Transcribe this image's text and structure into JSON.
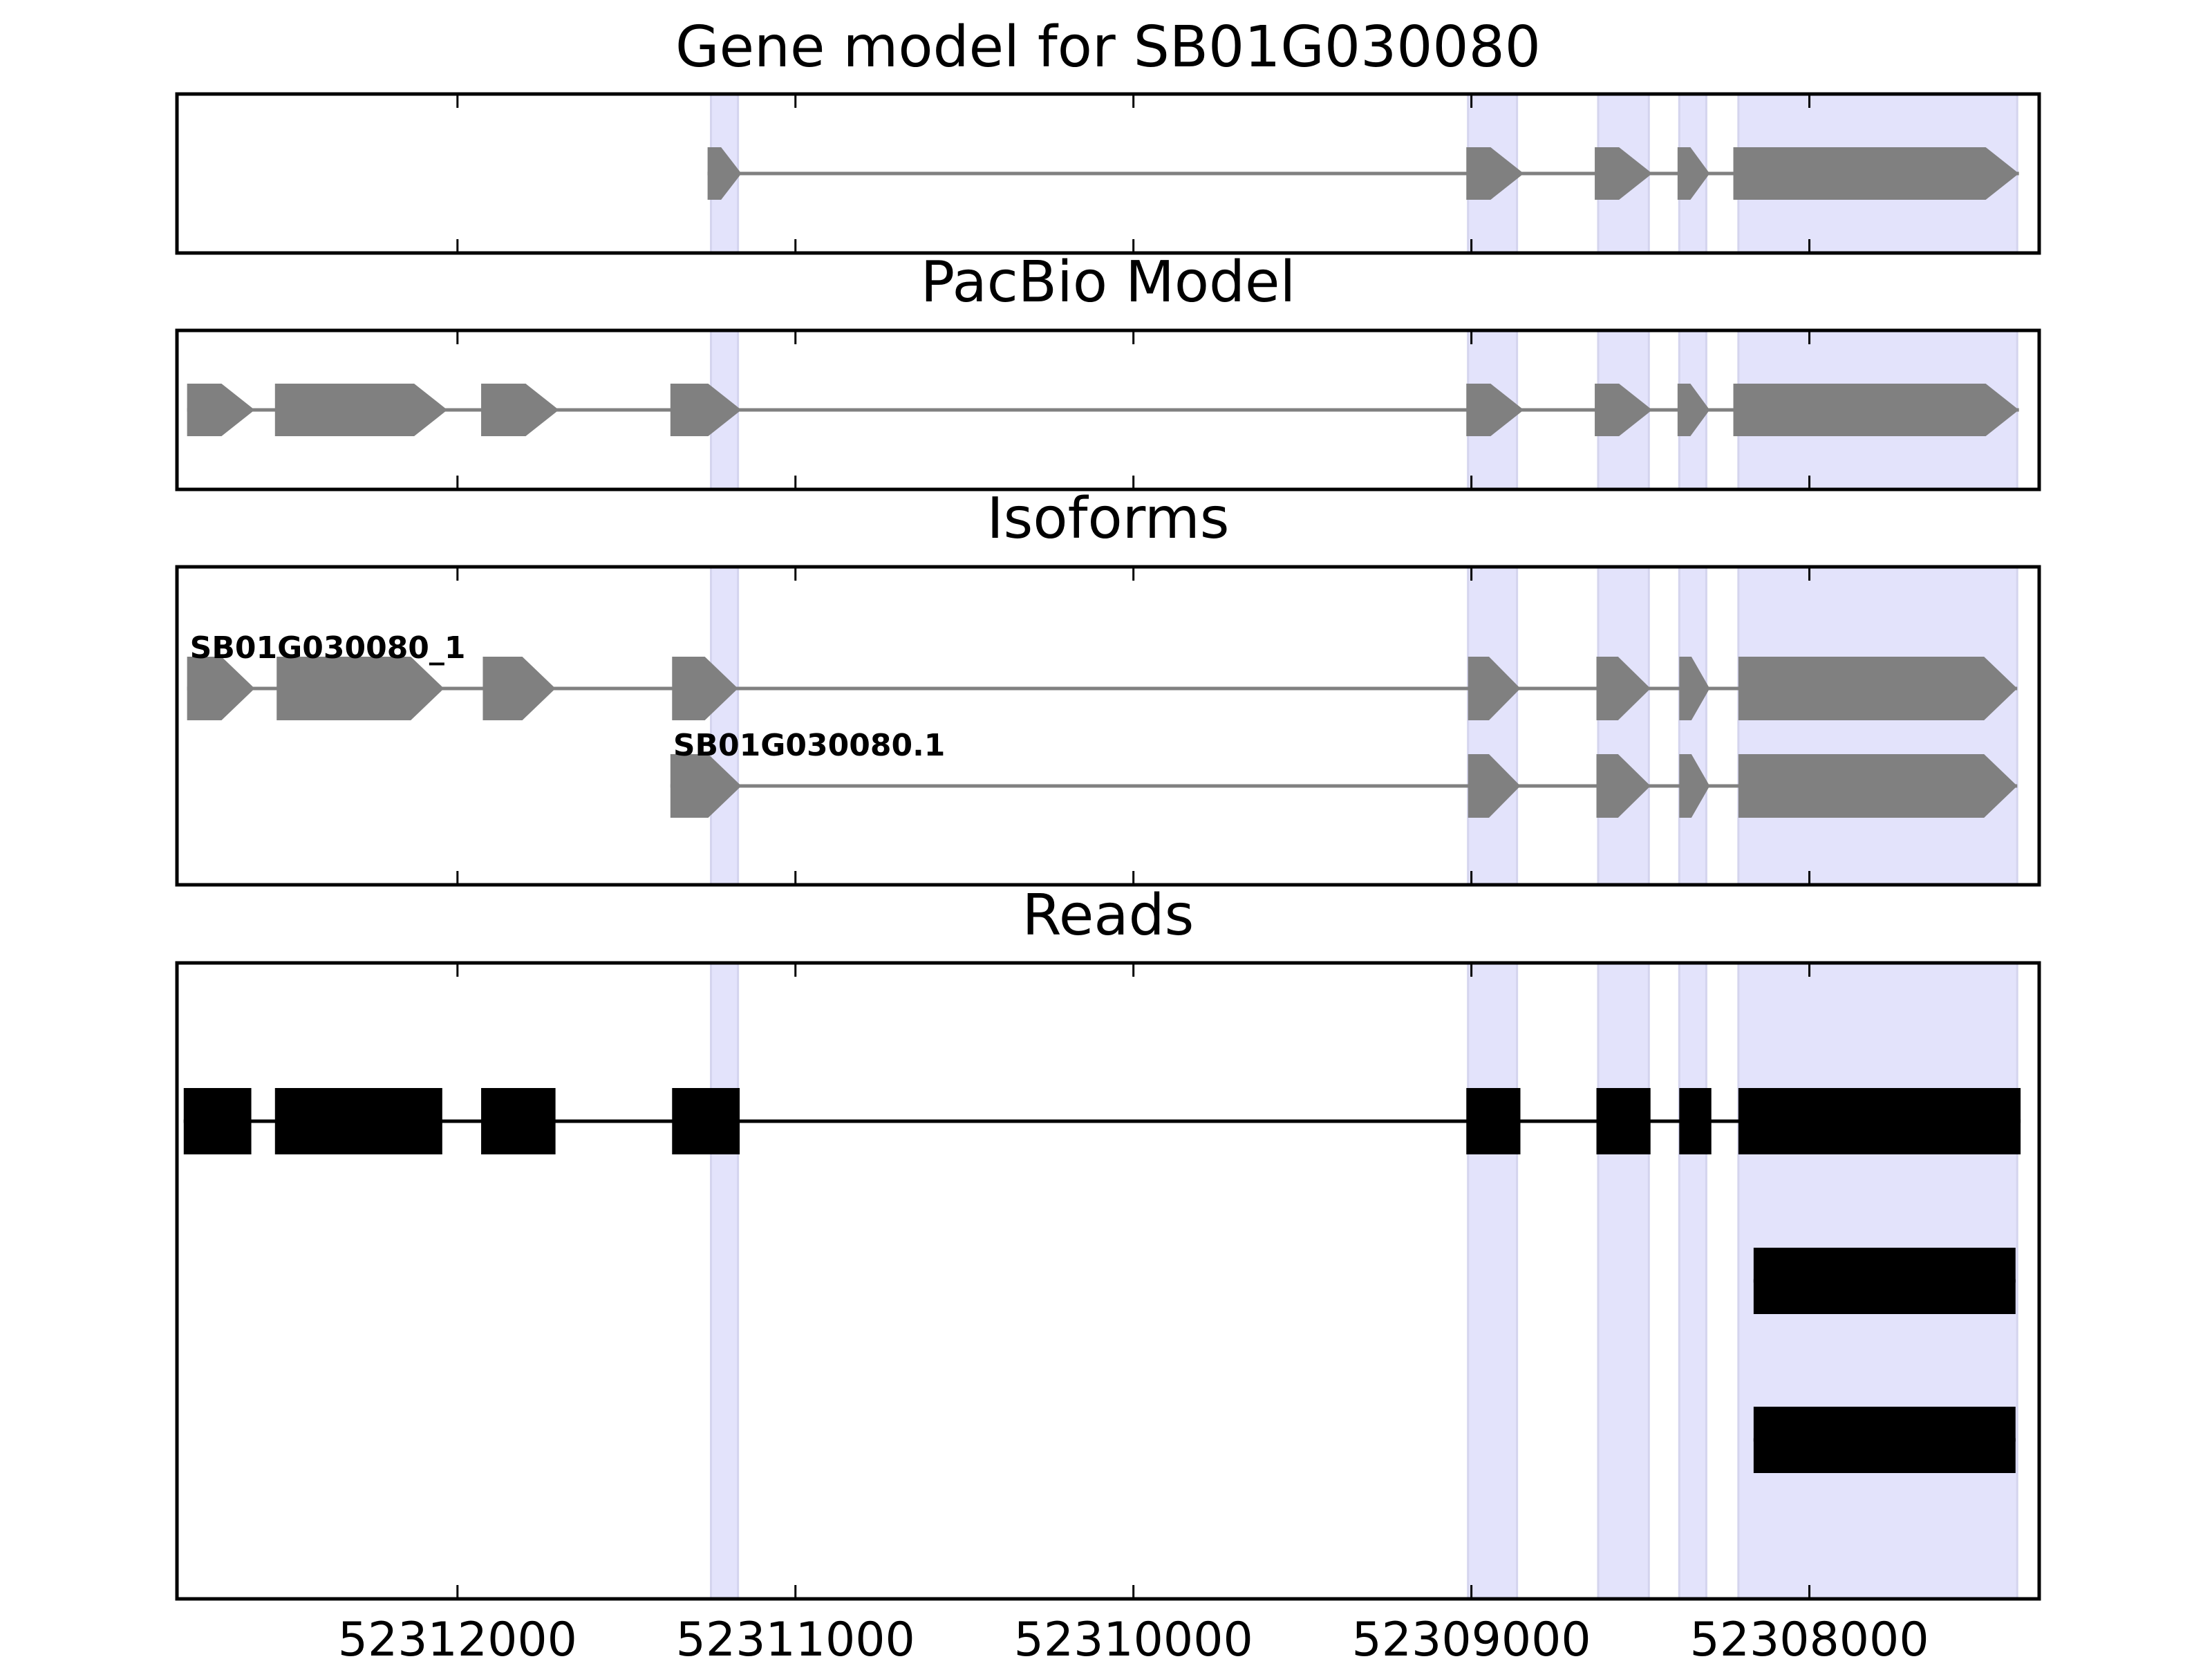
{
  "colors": {
    "highlight": "#e3e3fb",
    "gene_feature": "#808080",
    "read_feature": "#000000",
    "axis": "#000000",
    "background": "#ffffff"
  },
  "chart_data": {
    "type": "gene-track",
    "x_axis": {
      "direction": "reversed",
      "range": [
        52312830,
        52307320
      ],
      "ticks": [
        52312000,
        52311000,
        52310000,
        52309000,
        52308000
      ],
      "tick_labels": [
        "52312000",
        "52311000",
        "52310000",
        "52309000",
        "52308000"
      ]
    },
    "highlighted_exons": [
      [
        52311250,
        52311170
      ],
      [
        52309010,
        52308865
      ],
      [
        52308625,
        52308475
      ],
      [
        52308385,
        52308305
      ],
      [
        52308210,
        52307385
      ]
    ],
    "panels": [
      {
        "id": "gene-model",
        "title": "Gene model for SB01G030080",
        "feature_style": "arrow",
        "tracks": [
          {
            "label": "",
            "exons": [
              [
                52311260,
                52311160
              ],
              [
                52309015,
                52308845
              ],
              [
                52308635,
                52308465
              ],
              [
                52308390,
                52308295
              ],
              [
                52308225,
                52307380
              ]
            ]
          }
        ]
      },
      {
        "id": "pacbio-model",
        "title": "PacBio Model",
        "feature_style": "arrow",
        "tracks": [
          {
            "label": "",
            "exons": [
              [
                52312800,
                52312600
              ],
              [
                52312540,
                52312030
              ],
              [
                52311930,
                52311700
              ],
              [
                52311370,
                52311160
              ],
              [
                52309015,
                52308845
              ],
              [
                52308635,
                52308465
              ],
              [
                52308390,
                52308295
              ],
              [
                52308225,
                52307380
              ]
            ]
          }
        ]
      },
      {
        "id": "isoforms",
        "title": "Isoforms",
        "feature_style": "arrow",
        "tracks": [
          {
            "label": "SB01G030080_1",
            "exons": [
              [
                52312800,
                52312600
              ],
              [
                52312535,
                52312040
              ],
              [
                52311925,
                52311710
              ],
              [
                52311365,
                52311170
              ],
              [
                52309010,
                52308855
              ],
              [
                52308630,
                52308470
              ],
              [
                52308385,
                52308295
              ],
              [
                52308210,
                52307385
              ]
            ]
          },
          {
            "label": "SB01G030080.1",
            "exons": [
              [
                52311370,
                52311160
              ],
              [
                52309010,
                52308855
              ],
              [
                52308630,
                52308470
              ],
              [
                52308385,
                52308295
              ],
              [
                52308210,
                52307385
              ]
            ]
          }
        ]
      },
      {
        "id": "reads",
        "title": "Reads",
        "feature_style": "box",
        "tracks": [
          {
            "label": "",
            "exons": [
              [
                52312810,
                52312610
              ],
              [
                52312540,
                52312045
              ],
              [
                52311930,
                52311710
              ],
              [
                52311365,
                52311165
              ],
              [
                52309015,
                52308855
              ],
              [
                52308630,
                52308470
              ],
              [
                52308385,
                52308290
              ],
              [
                52308210,
                52307375
              ]
            ]
          },
          {
            "label": "",
            "exons": [
              [
                52308165,
                52307390
              ]
            ]
          },
          {
            "label": "",
            "exons": [
              [
                52308165,
                52307390
              ]
            ]
          }
        ]
      }
    ]
  }
}
